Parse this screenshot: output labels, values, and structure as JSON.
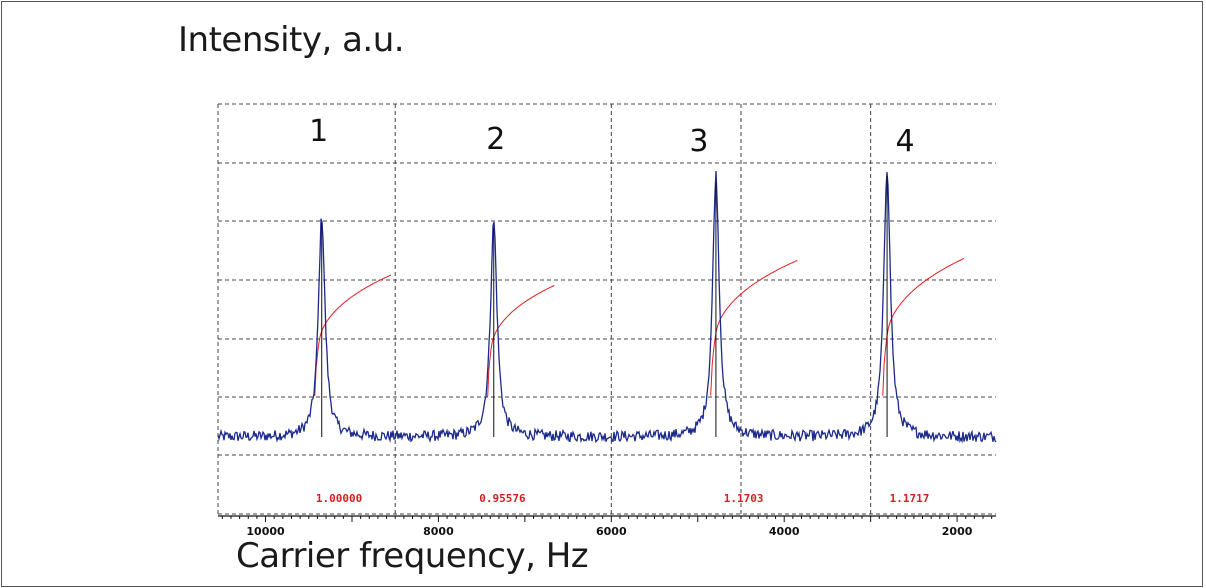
{
  "chart_data": {
    "type": "line",
    "ylabel": "Intensity, a.u.",
    "xlabel": "Carrier frequency, Hz",
    "xlim": [
      10550,
      1550
    ],
    "x_ticks": [
      10000,
      8000,
      6000,
      4000,
      2000
    ],
    "x_tick_labels": [
      "10000",
      "8000",
      "6000",
      "4000",
      "2000"
    ],
    "vertical_gridlines": [
      8500,
      6000,
      4500,
      3000
    ],
    "grid": true,
    "series": [
      {
        "color": "#1c2a8c",
        "peaks": [
          {
            "label": "1",
            "x": 9350,
            "height": 0.9
          },
          {
            "label": "2",
            "x": 7360,
            "height": 0.88
          },
          {
            "label": "3",
            "x": 4790,
            "height": 1.07
          },
          {
            "label": "4",
            "x": 2810,
            "height": 1.1
          }
        ],
        "baseline": 0.0
      },
      {
        "color": "#e02020",
        "curves": [
          {
            "x_start": 9430,
            "x_end": 8550,
            "rise": 0.6
          },
          {
            "x_start": 7430,
            "x_end": 6660,
            "rise": 0.55
          },
          {
            "x_start": 4850,
            "x_end": 3850,
            "rise": 0.67
          },
          {
            "x_start": 2860,
            "x_end": 1920,
            "rise": 0.68
          }
        ]
      }
    ],
    "peak_labels": [
      "1",
      "2",
      "3",
      "4"
    ],
    "annotations": [
      {
        "text": "1.00000",
        "x": 9150
      },
      {
        "text": "0.95576",
        "x": 7260
      },
      {
        "text": "1.1703",
        "x": 4470
      },
      {
        "text": "1.1717",
        "x": 2550
      }
    ]
  }
}
